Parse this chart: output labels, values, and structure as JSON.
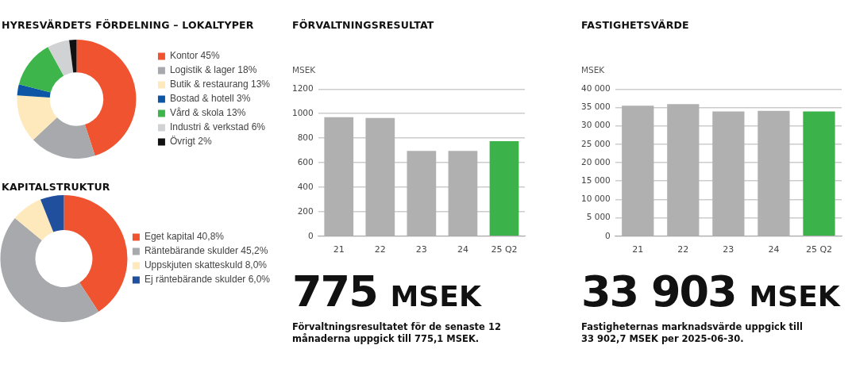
{
  "chart_data": [
    {
      "type": "donut",
      "title": "HYRESVÄRDETS FÖRDELNING – LOKALTYPER",
      "categories": [
        "Kontor 45%",
        "Logistik & lager 18%",
        "Butik & restaurang 13%",
        "Bostad & hotell 3%",
        "Vård & skola 13%",
        "Industri & verkstad 6%",
        "Övrigt 2%"
      ],
      "values": [
        45,
        18,
        13,
        3,
        13,
        6,
        2
      ],
      "colors": [
        "#f0532f",
        "#a7a9ac",
        "#fde9bb",
        "#0d55a5",
        "#3db54a",
        "#d1d2d4",
        "#111111"
      ],
      "legend": "right"
    },
    {
      "type": "donut",
      "title": "KAPITALSTRUKTUR",
      "categories": [
        "Eget kapital 40,8%",
        "Räntebärande skulder 45,2%",
        "Uppskjuten skatteskuld 8,0%",
        "Ej räntebärande skulder 6,0%"
      ],
      "values": [
        40.8,
        45.2,
        8.0,
        6.0
      ],
      "colors": [
        "#f0532f",
        "#a7a9ac",
        "#fde9bb",
        "#204f9e"
      ],
      "legend": "right"
    },
    {
      "type": "bar",
      "title": "FÖRVALTNINGSRESULTAT",
      "ylabel": "MSEK",
      "categories": [
        "21",
        "22",
        "23",
        "24",
        "25 Q2"
      ],
      "values": [
        970,
        965,
        695,
        695,
        775
      ],
      "colors": [
        "#b0b0b0",
        "#b0b0b0",
        "#b0b0b0",
        "#b0b0b0",
        "#3cb34a"
      ],
      "ylim": [
        0,
        1200
      ],
      "yticks": [
        0,
        200,
        400,
        600,
        800,
        1000,
        1200
      ],
      "grid": "y",
      "annotations": [
        "775 MSEK",
        "Förvaltningsresultatet för de senaste 12 månaderna uppgick till 775,1 MSEK."
      ]
    },
    {
      "type": "bar",
      "title": "FASTIGHETSVÄRDE",
      "ylabel": "MSEK",
      "categories": [
        "21",
        "22",
        "23",
        "24",
        "25 Q2"
      ],
      "values": [
        35500,
        35900,
        33900,
        34100,
        33900
      ],
      "colors": [
        "#b0b0b0",
        "#b0b0b0",
        "#b0b0b0",
        "#b0b0b0",
        "#3cb34a"
      ],
      "ylim": [
        0,
        40000
      ],
      "yticks": [
        0,
        {
          "value": 5000,
          "label": "5 000"
        },
        {
          "value": 10000,
          "label": "10 000"
        },
        {
          "value": 15000,
          "label": "15 000"
        },
        {
          "value": 20000,
          "label": "20 000"
        },
        {
          "value": 25000,
          "label": "25 000"
        },
        {
          "value": 30000,
          "label": "30 000"
        },
        {
          "value": 35000,
          "label": "35 000"
        },
        {
          "value": 40000,
          "label": "40 000"
        }
      ],
      "grid": "y",
      "annotations": [
        "33 903 MSEK",
        "Fastigheternas marknadsvärde uppgick till 33 902,7 MSEK per 2025-06-30."
      ]
    }
  ]
}
